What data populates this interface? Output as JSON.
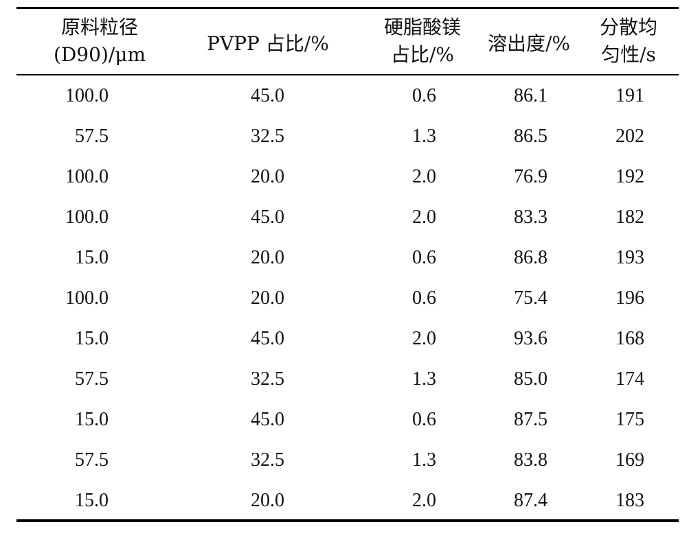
{
  "table": {
    "headers": [
      {
        "lines": [
          "原料粒径",
          "(D90)/μm"
        ]
      },
      {
        "lines": [
          "PVPP 占比/%"
        ]
      },
      {
        "lines": [
          "硬脂酸镁",
          "占比/%"
        ]
      },
      {
        "lines": [
          "溶出度/%"
        ]
      },
      {
        "lines": [
          "分散均",
          "匀性/s"
        ]
      }
    ],
    "rows": [
      [
        "100.0",
        "45.0",
        "0.6",
        "86.1",
        "191"
      ],
      [
        "57.5",
        "32.5",
        "1.3",
        "86.5",
        "202"
      ],
      [
        "100.0",
        "20.0",
        "2.0",
        "76.9",
        "192"
      ],
      [
        "100.0",
        "45.0",
        "2.0",
        "83.3",
        "182"
      ],
      [
        "15.0",
        "20.0",
        "0.6",
        "86.8",
        "193"
      ],
      [
        "100.0",
        "20.0",
        "0.6",
        "75.4",
        "196"
      ],
      [
        "15.0",
        "45.0",
        "2.0",
        "93.6",
        "168"
      ],
      [
        "57.5",
        "32.5",
        "1.3",
        "85.0",
        "174"
      ],
      [
        "15.0",
        "45.0",
        "0.6",
        "87.5",
        "175"
      ],
      [
        "57.5",
        "32.5",
        "1.3",
        "83.8",
        "169"
      ],
      [
        "15.0",
        "20.0",
        "2.0",
        "87.4",
        "183"
      ]
    ]
  }
}
